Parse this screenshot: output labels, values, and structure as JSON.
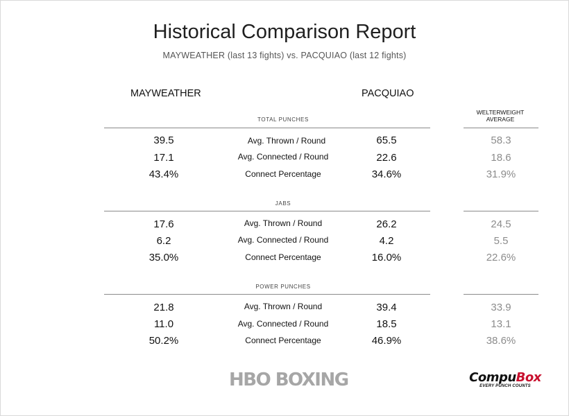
{
  "title": "Historical Comparison Report",
  "subtitle": "MAYWEATHER (last 13 fights) vs. PACQUIAO (last 12 fights)",
  "columns": {
    "left": "MAYWEATHER",
    "right": "PACQUIAO",
    "average_line1": "WELTERWEIGHT",
    "average_line2": "AVERAGE"
  },
  "sections": [
    {
      "label": "TOTAL PUNCHES",
      "rows": [
        {
          "metric": "Avg. Thrown / Round",
          "mayweather": "39.5",
          "pacquiao": "65.5",
          "average": "58.3"
        },
        {
          "metric": "Avg. Connected / Round",
          "mayweather": "17.1",
          "pacquiao": "22.6",
          "average": "18.6"
        },
        {
          "metric": "Connect Percentage",
          "mayweather": "43.4%",
          "pacquiao": "34.6%",
          "average": "31.9%"
        }
      ]
    },
    {
      "label": "JABS",
      "rows": [
        {
          "metric": "Avg. Thrown / Round",
          "mayweather": "17.6",
          "pacquiao": "26.2",
          "average": "24.5"
        },
        {
          "metric": "Avg. Connected / Round",
          "mayweather": "6.2",
          "pacquiao": "4.2",
          "average": "5.5"
        },
        {
          "metric": "Connect Percentage",
          "mayweather": "35.0%",
          "pacquiao": "16.0%",
          "average": "22.6%"
        }
      ]
    },
    {
      "label": "POWER PUNCHES",
      "rows": [
        {
          "metric": "Avg. Thrown / Round",
          "mayweather": "21.8",
          "pacquiao": "39.4",
          "average": "33.9"
        },
        {
          "metric": "Avg. Connected / Round",
          "mayweather": "11.0",
          "pacquiao": "18.5",
          "average": "13.1"
        },
        {
          "metric": "Connect Percentage",
          "mayweather": "50.2%",
          "pacquiao": "46.9%",
          "average": "38.6%"
        }
      ]
    }
  ],
  "footer": {
    "hbo_logo": "HBO BOXING",
    "compubox_part1": "Compu",
    "compubox_part2": "Box",
    "compubox_tagline": "EVERY PUNCH COUNTS"
  },
  "colors": {
    "average_values": "#8c8c8c",
    "compubox_red": "#c8102e",
    "logo_gray": "#a6a6a6"
  }
}
